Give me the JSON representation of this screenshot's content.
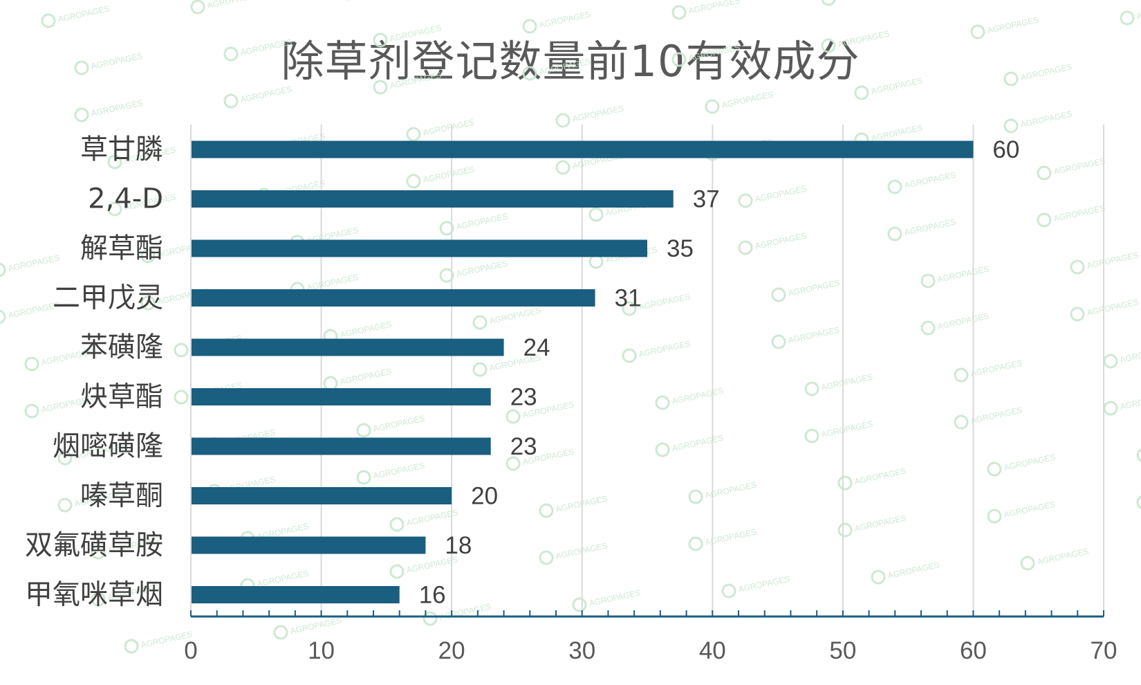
{
  "chart_data": {
    "type": "bar",
    "orientation": "horizontal",
    "title": "除草剂登记数量前10有效成分",
    "xlabel": "",
    "ylabel": "",
    "xlim": [
      0,
      70
    ],
    "x_ticks": [
      "0",
      "10",
      "20",
      "30",
      "40",
      "50",
      "60",
      "70"
    ],
    "grid": "vertical",
    "legend": "none",
    "categories": [
      "草甘膦",
      "2,4-D",
      "解草酯",
      "二甲戊灵",
      "苯磺隆",
      "炔草酯",
      "烟嘧磺隆",
      "嗪草酮",
      "双氟磺草胺",
      "甲氧咪草烟"
    ],
    "values": [
      60,
      37,
      35,
      31,
      24,
      23,
      23,
      20,
      18,
      16
    ],
    "data_labels": [
      "60",
      "37",
      "35",
      "31",
      "24",
      "23",
      "23",
      "20",
      "18",
      "16"
    ],
    "bar_color": "#1a5e80",
    "axis_color": "#1a5e80",
    "grid_color": "#d9d9d9",
    "text_color": "#404040"
  },
  "watermark": {
    "text": "AGROPAGES",
    "color": "#c9e6cf"
  }
}
